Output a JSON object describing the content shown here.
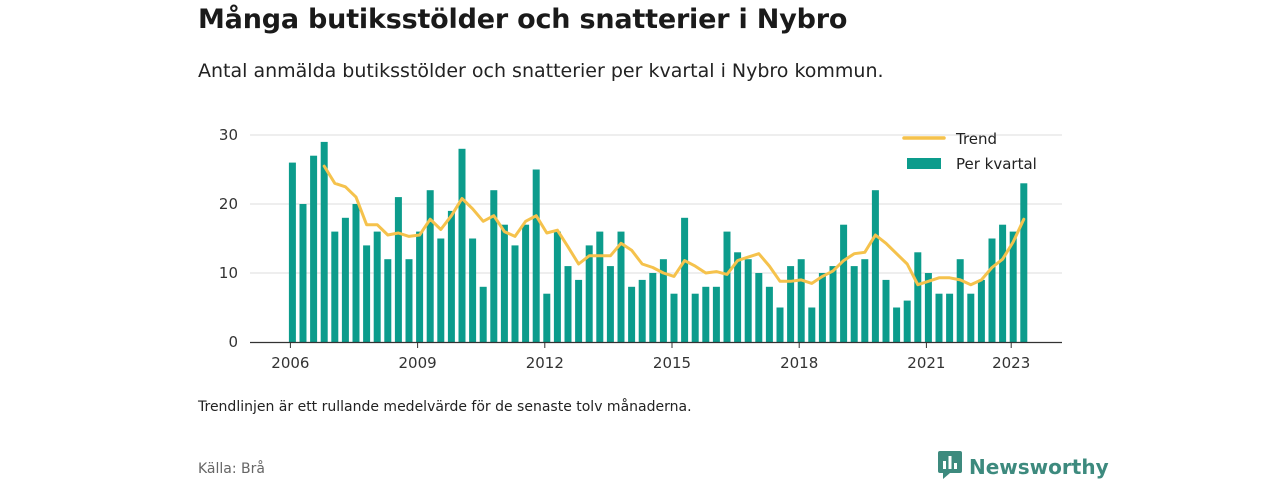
{
  "header": {
    "title": "Många butiksstölder och snatterier i Nybro",
    "subtitle": "Antal anmälda butiksstölder och snatterier per kvartal i Nybro kommun."
  },
  "footer": {
    "note": "Trendlinjen är ett rullande medelvärde för de senaste tolv månaderna.",
    "source": "Källa: Brå",
    "brand": "Newsworthy"
  },
  "colors": {
    "bars": "#0c9c8c",
    "trend": "#f5c24c",
    "grid": "#dddddd",
    "brand": "#3d8a7e"
  },
  "icons": {
    "brand_logo": "bar-chart-speech-bubble-icon"
  },
  "chart_data": {
    "type": "bar",
    "x_start": {
      "year": 2006,
      "quarter": 1
    },
    "ylim": [
      0,
      30
    ],
    "y_ticks": [
      0,
      10,
      20,
      30
    ],
    "x_ticks": [
      2006,
      2009,
      2012,
      2015,
      2018,
      2021,
      2023
    ],
    "grid": "horizontal",
    "legend_position": "top-right",
    "series": [
      {
        "name": "Per kvartal",
        "type": "bar",
        "values": [
          26,
          20,
          27,
          29,
          16,
          18,
          20,
          14,
          16,
          12,
          21,
          12,
          16,
          22,
          15,
          19,
          28,
          15,
          8,
          22,
          17,
          14,
          17,
          25,
          7,
          16,
          11,
          9,
          14,
          16,
          11,
          16,
          8,
          9,
          10,
          12,
          7,
          18,
          7,
          8,
          8,
          16,
          13,
          12,
          10,
          8,
          5,
          11,
          12,
          5,
          10,
          11,
          17,
          11,
          12,
          22,
          9,
          5,
          6,
          13,
          10,
          7,
          7,
          12,
          7,
          9,
          15,
          17,
          16,
          23
        ]
      },
      {
        "name": "Trend",
        "type": "line",
        "values": [
          null,
          null,
          null,
          25.5,
          23,
          22.5,
          21,
          17,
          17,
          15.5,
          15.8,
          15.3,
          15.5,
          17.8,
          16.3,
          18.3,
          20.8,
          19.3,
          17.5,
          18.3,
          16,
          15.3,
          17.5,
          18.3,
          15.8,
          16.2,
          13.8,
          11.3,
          12.5,
          12.5,
          12.5,
          14.3,
          13.3,
          11.3,
          10.8,
          10,
          9.5,
          11.8,
          11,
          10,
          10.2,
          9.8,
          11.8,
          12.3,
          12.8,
          11,
          8.8,
          8.8,
          9,
          8.5,
          9.5,
          10.3,
          11.8,
          12.8,
          13,
          15.5,
          14.3,
          12.8,
          11.3,
          8.3,
          8.8,
          9.3,
          9.3,
          9,
          8.3,
          9,
          10.8,
          12,
          14.5,
          17.8
        ]
      }
    ]
  }
}
